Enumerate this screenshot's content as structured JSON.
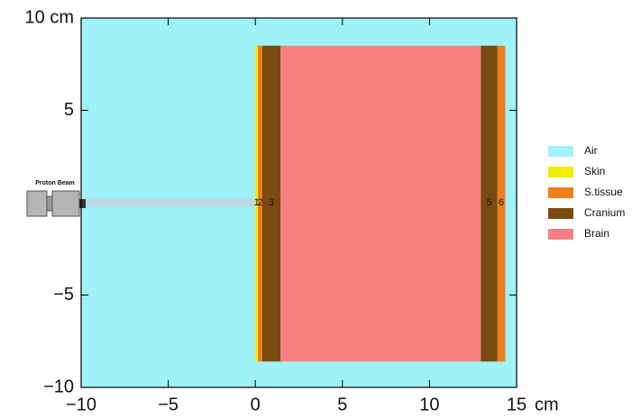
{
  "chart_data": {
    "type": "geometry",
    "xlim": [
      -10,
      15
    ],
    "ylim": [
      -10,
      10
    ],
    "xticks": [
      {
        "value": -10,
        "label": "−10"
      },
      {
        "value": -5,
        "label": "−5"
      },
      0,
      5,
      10,
      15
    ],
    "yticks": [
      {
        "value": -10,
        "label": "−10"
      },
      {
        "value": -5,
        "label": "−5"
      },
      5,
      {
        "value": 10,
        "label": "10 cm"
      }
    ],
    "x_unit": "cm",
    "background": {
      "name": "Air",
      "color": "#9ff2f7"
    },
    "regions": [
      {
        "name": "Skin",
        "label": "1",
        "color": "#f2ee00",
        "x": [
          0,
          0.15
        ],
        "y": [
          -8.6,
          8.5
        ]
      },
      {
        "name": "S.tissue",
        "label": "2",
        "color": "#f07d1e",
        "x": [
          0.15,
          0.4
        ],
        "y": [
          -8.6,
          8.5
        ]
      },
      {
        "name": "Cranium",
        "label": "3",
        "color": "#7a4a10",
        "x": [
          0.4,
          1.45
        ],
        "y": [
          -8.6,
          8.5
        ]
      },
      {
        "name": "Brain",
        "color": "#f77f7f",
        "x": [
          1.45,
          12.95
        ],
        "y": [
          -8.6,
          8.5
        ]
      },
      {
        "name": "Cranium",
        "label": "5",
        "color": "#7a4a10",
        "x": [
          12.95,
          13.9
        ],
        "y": [
          -8.6,
          8.5
        ]
      },
      {
        "name": "S.tissue",
        "label": "6",
        "color": "#f07d1e",
        "x": [
          13.9,
          14.35
        ],
        "y": [
          -8.6,
          8.5
        ]
      }
    ],
    "beam": {
      "label": "Proton Beam",
      "x": [
        -10,
        0
      ],
      "y": 0
    },
    "legend": [
      {
        "name": "Air",
        "color": "#9ff2f7"
      },
      {
        "name": "Skin",
        "color": "#f2ee00"
      },
      {
        "name": "S.tissue",
        "color": "#f07d1e"
      },
      {
        "name": "Cranium",
        "color": "#7a4a10"
      },
      {
        "name": "Brain",
        "color": "#f77f7f"
      }
    ]
  }
}
